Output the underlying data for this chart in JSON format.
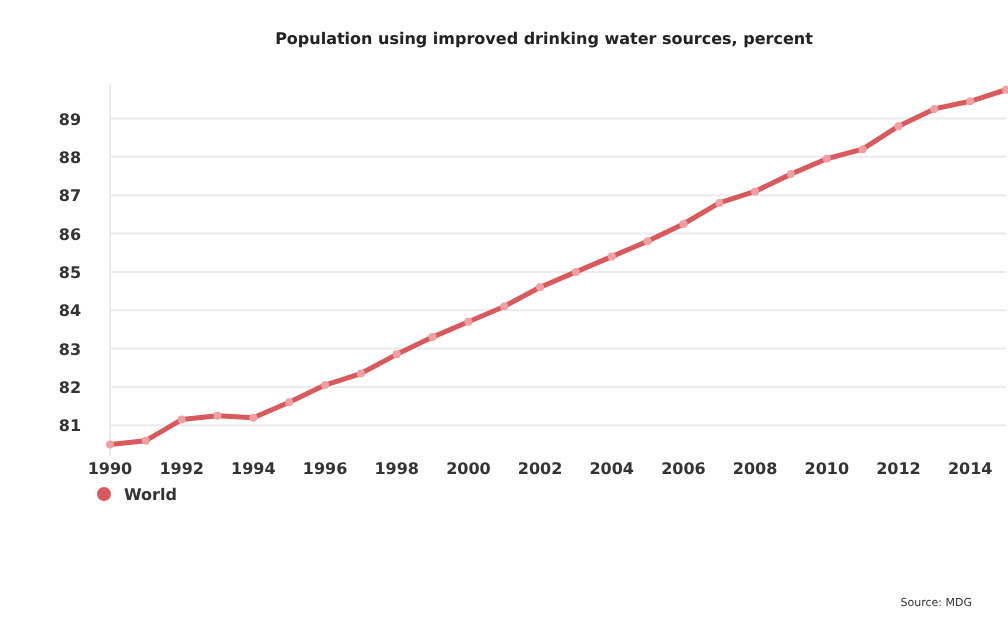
{
  "chart_data": {
    "type": "line",
    "title": "Population using improved drinking water sources, percent",
    "x": [
      1990,
      1991,
      1992,
      1993,
      1994,
      1995,
      1996,
      1997,
      1998,
      1999,
      2000,
      2001,
      2002,
      2003,
      2004,
      2005,
      2006,
      2007,
      2008,
      2009,
      2010,
      2011,
      2012,
      2013,
      2014,
      2015
    ],
    "series": [
      {
        "name": "World",
        "color": "#d9595c",
        "values": [
          80.5,
          80.6,
          81.15,
          81.25,
          81.2,
          81.6,
          82.05,
          82.35,
          82.85,
          83.3,
          83.7,
          84.1,
          84.6,
          85.0,
          85.4,
          85.8,
          86.25,
          86.8,
          87.1,
          87.55,
          87.95,
          88.2,
          88.8,
          89.25,
          89.45,
          89.75
        ]
      }
    ],
    "xlim": [
      1990,
      2015
    ],
    "xticks": [
      1990,
      1992,
      1994,
      1996,
      1998,
      2000,
      2002,
      2004,
      2006,
      2008,
      2010,
      2012,
      2014
    ],
    "ylim": [
      80.2,
      89.9
    ],
    "yticks": [
      81,
      82,
      83,
      84,
      85,
      86,
      87,
      88,
      89
    ],
    "grid": "y",
    "legend": "bottom left",
    "marker": "circle",
    "line_style": "solid",
    "annotations": [
      "Source: MDG"
    ]
  }
}
